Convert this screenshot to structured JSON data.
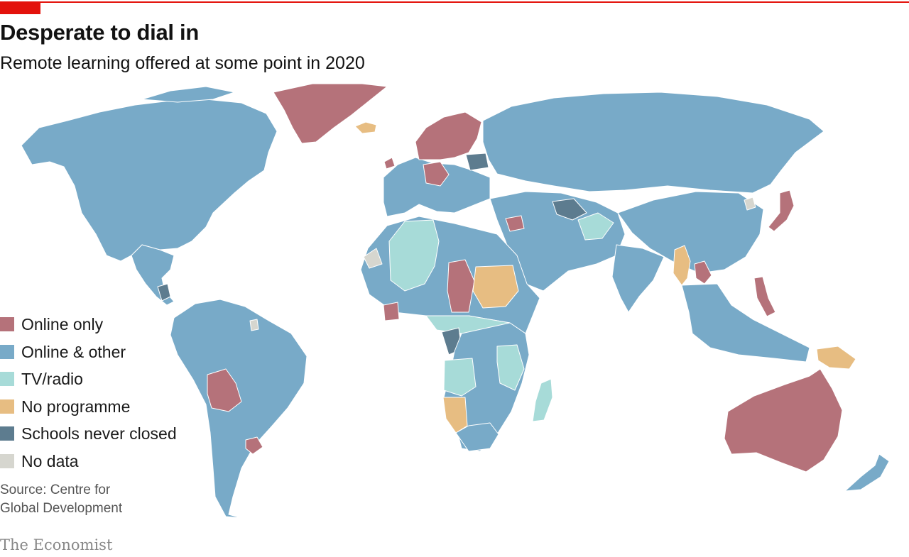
{
  "header": {
    "title": "Desperate to dial in",
    "subtitle": "Remote learning offered at some point in 2020",
    "accent_color": "#e3120b"
  },
  "legend": {
    "items": [
      {
        "key": "online_only",
        "label": "Online only",
        "color": "#b5727a"
      },
      {
        "key": "online_other",
        "label": "Online & other",
        "color": "#78aac8"
      },
      {
        "key": "tv_radio",
        "label": "TV/radio",
        "color": "#a7dbd8"
      },
      {
        "key": "no_programme",
        "label": "No programme",
        "color": "#e7bd82"
      },
      {
        "key": "never_closed",
        "label": "Schools never closed",
        "color": "#5d7c8f"
      },
      {
        "key": "no_data",
        "label": "No data",
        "color": "#d6d6cf"
      }
    ]
  },
  "footer": {
    "source": "Source: Centre for Global Development",
    "brand": "The Economist"
  },
  "map": {
    "regions": [
      {
        "name": "North America",
        "category": "online_other"
      },
      {
        "name": "Greenland",
        "category": "online_only"
      },
      {
        "name": "Iceland",
        "category": "no_programme"
      },
      {
        "name": "Central America",
        "category": "online_other"
      },
      {
        "name": "Nicaragua",
        "category": "never_closed"
      },
      {
        "name": "South America",
        "category": "online_other"
      },
      {
        "name": "Bolivia",
        "category": "online_only"
      },
      {
        "name": "Uruguay",
        "category": "online_only"
      },
      {
        "name": "French Guiana",
        "category": "no_data"
      },
      {
        "name": "Western Europe",
        "category": "online_other"
      },
      {
        "name": "Scandinavia",
        "category": "online_only"
      },
      {
        "name": "Germany",
        "category": "online_only"
      },
      {
        "name": "Belarus",
        "category": "never_closed"
      },
      {
        "name": "Ireland",
        "category": "online_only"
      },
      {
        "name": "Russia",
        "category": "online_other"
      },
      {
        "name": "Turkmenistan",
        "category": "never_closed"
      },
      {
        "name": "Afghanistan",
        "category": "tv_radio"
      },
      {
        "name": "Middle East",
        "category": "online_other"
      },
      {
        "name": "Syria",
        "category": "online_only"
      },
      {
        "name": "China",
        "category": "online_other"
      },
      {
        "name": "North Korea",
        "category": "no_data"
      },
      {
        "name": "Japan",
        "category": "online_only"
      },
      {
        "name": "India",
        "category": "online_other"
      },
      {
        "name": "Myanmar",
        "category": "no_programme"
      },
      {
        "name": "Laos",
        "category": "online_only"
      },
      {
        "name": "Philippines",
        "category": "online_only"
      },
      {
        "name": "Indonesia",
        "category": "online_other"
      },
      {
        "name": "Papua New Guinea",
        "category": "no_programme"
      },
      {
        "name": "Australia",
        "category": "online_only"
      },
      {
        "name": "New Zealand",
        "category": "online_other"
      },
      {
        "name": "North Africa",
        "category": "online_other"
      },
      {
        "name": "Algeria and Mali",
        "category": "tv_radio"
      },
      {
        "name": "Western Sahara",
        "category": "no_data"
      },
      {
        "name": "Chad",
        "category": "online_only"
      },
      {
        "name": "Sudan",
        "category": "no_programme"
      },
      {
        "name": "Ivory Coast",
        "category": "online_only"
      },
      {
        "name": "Central Africa",
        "category": "tv_radio"
      },
      {
        "name": "Congo",
        "category": "never_closed"
      },
      {
        "name": "East Africa",
        "category": "online_other"
      },
      {
        "name": "Tanzania",
        "category": "tv_radio"
      },
      {
        "name": "Angola and Zambia",
        "category": "tv_radio"
      },
      {
        "name": "Namibia",
        "category": "no_programme"
      },
      {
        "name": "Southern Africa",
        "category": "online_other"
      },
      {
        "name": "Madagascar",
        "category": "tv_radio"
      }
    ]
  }
}
